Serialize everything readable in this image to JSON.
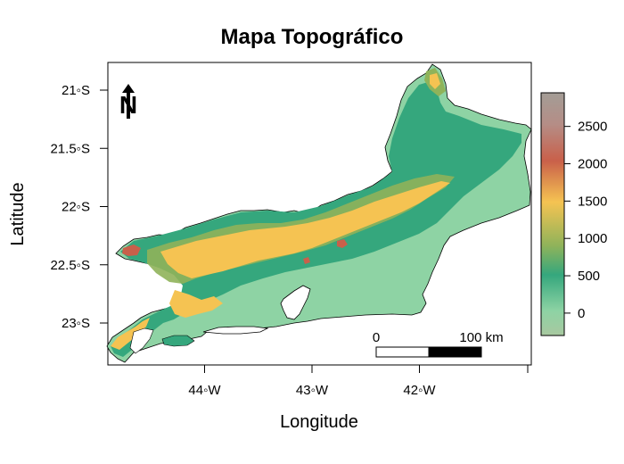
{
  "title": "Mapa Topográfico",
  "xlabel": "Longitude",
  "ylabel": "Latitude",
  "x_ticks": [
    {
      "value": -44,
      "label": "44◦W"
    },
    {
      "value": -43,
      "label": "43◦W"
    },
    {
      "value": -42,
      "label": "42◦W"
    }
  ],
  "y_ticks": [
    {
      "value": -21,
      "label": "21◦S"
    },
    {
      "value": -21.5,
      "label": "21.5◦S"
    },
    {
      "value": -22,
      "label": "22◦S"
    },
    {
      "value": -22.5,
      "label": "22.5◦S"
    },
    {
      "value": -23,
      "label": "23◦S"
    }
  ],
  "legend": {
    "ticks": [
      {
        "value": 0,
        "label": "0"
      },
      {
        "value": 500,
        "label": "500"
      },
      {
        "value": 1000,
        "label": "1000"
      },
      {
        "value": 1500,
        "label": "1500"
      },
      {
        "value": 2000,
        "label": "2000"
      },
      {
        "value": 2500,
        "label": "2500"
      }
    ],
    "range": [
      -300,
      2950
    ],
    "colors": [
      "#a8c8a0",
      "#8ed3a4",
      "#35a77d",
      "#8fb35a",
      "#f5c352",
      "#c9604a",
      "#b58d86",
      "#a39d96"
    ]
  },
  "scale_bar": {
    "start_label": "0",
    "end_label": "100 km"
  },
  "north_arrow": {
    "letter": "N",
    "icon": "north-arrow-icon"
  },
  "map_colors": {
    "lowland": "#8ed3a4",
    "hills": "#35a77d",
    "mid": "#8fb35a",
    "high": "#f5c352",
    "peak": "#c9604a",
    "sea": "#ffffff"
  }
}
